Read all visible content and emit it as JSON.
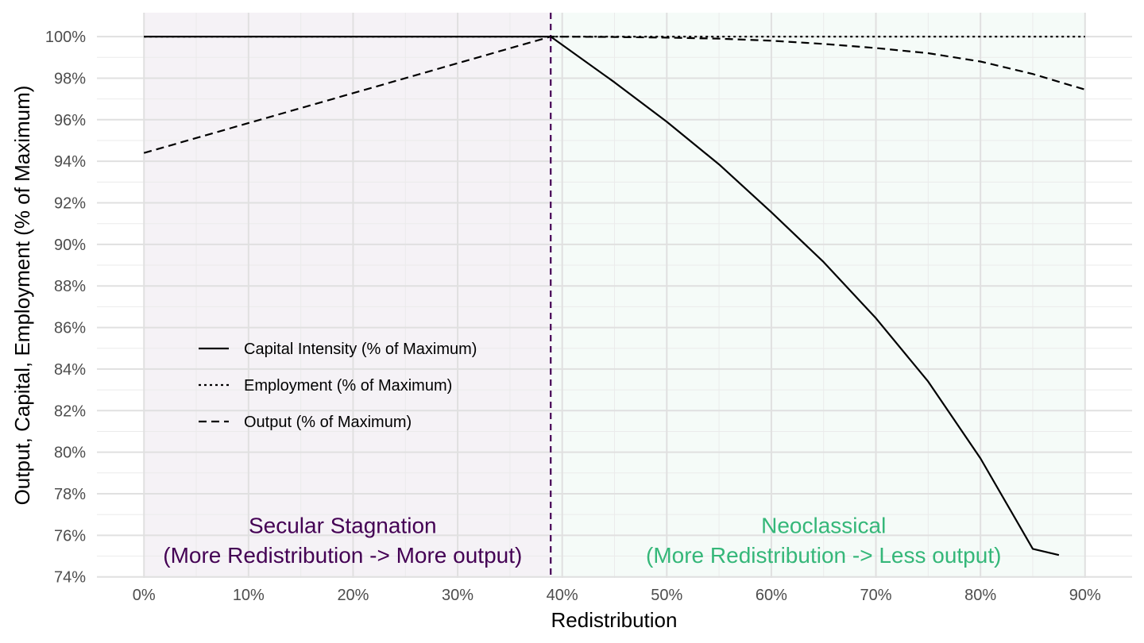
{
  "chart_data": {
    "type": "line",
    "xlabel": "Redistribution",
    "ylabel": "Output, Capital, Employment (% of Maximum)",
    "xlim": [
      -0.045,
      0.945
    ],
    "ylim": [
      0.7395,
      1.0115
    ],
    "x_ticks": [
      0,
      0.1,
      0.2,
      0.3,
      0.4,
      0.5,
      0.6,
      0.7,
      0.8,
      0.9
    ],
    "x_tick_labels": [
      "0%",
      "10%",
      "20%",
      "30%",
      "40%",
      "50%",
      "60%",
      "70%",
      "80%",
      "90%"
    ],
    "y_ticks": [
      0.74,
      0.76,
      0.78,
      0.8,
      0.82,
      0.84,
      0.86,
      0.88,
      0.9,
      0.92,
      0.94,
      0.96,
      0.98,
      1.0
    ],
    "y_tick_labels": [
      "74%",
      "76%",
      "78%",
      "80%",
      "82%",
      "84%",
      "86%",
      "88%",
      "90%",
      "92%",
      "94%",
      "96%",
      "98%",
      "100%"
    ],
    "grid": true,
    "threshold": {
      "x": 0.389,
      "style": "dashed",
      "color": "#440154"
    },
    "regions": [
      {
        "x": [
          0,
          0.389
        ],
        "fill": "#440154",
        "opacity": 0.05,
        "label_lines": [
          "Secular Stagnation",
          "(More Redistribution -> More output)"
        ],
        "label_color": "#440154",
        "label_x": 0.19,
        "label_y": [
          0.765,
          0.7505
        ]
      },
      {
        "x": [
          0.389,
          0.9
        ],
        "fill": "#35b779",
        "opacity": 0.05,
        "label_lines": [
          "Neoclassical",
          "(More Redistribution -> Less output)"
        ],
        "label_color": "#35b779",
        "label_x": 0.65,
        "label_y": [
          0.765,
          0.7505
        ]
      }
    ],
    "legend": {
      "placement": "left-middle"
    },
    "series": [
      {
        "name": "Capital Intensity (% of Maximum)",
        "dash": "solid",
        "x": [
          0,
          0.389,
          0.45,
          0.5,
          0.55,
          0.6,
          0.65,
          0.7,
          0.75,
          0.8,
          0.85,
          0.875
        ],
        "y": [
          1.0,
          1.0,
          0.978,
          0.959,
          0.9385,
          0.9155,
          0.8915,
          0.8645,
          0.834,
          0.797,
          0.7535,
          0.7505
        ]
      },
      {
        "name": "Employment (% of Maximum)",
        "dash": "dotted",
        "x": [
          0,
          0.389,
          0.5,
          0.6,
          0.7,
          0.8,
          0.9
        ],
        "y": [
          1.0,
          1.0,
          1.0,
          1.0,
          1.0,
          1.0,
          1.0
        ]
      },
      {
        "name": "Output (% of Maximum)",
        "dash": "dashed",
        "x": [
          0,
          0.389,
          0.45,
          0.5,
          0.55,
          0.6,
          0.65,
          0.7,
          0.75,
          0.8,
          0.85,
          0.9
        ],
        "y": [
          0.944,
          1.0,
          0.9998,
          0.9995,
          0.999,
          0.998,
          0.9965,
          0.9945,
          0.992,
          0.988,
          0.982,
          0.9745
        ]
      }
    ]
  }
}
